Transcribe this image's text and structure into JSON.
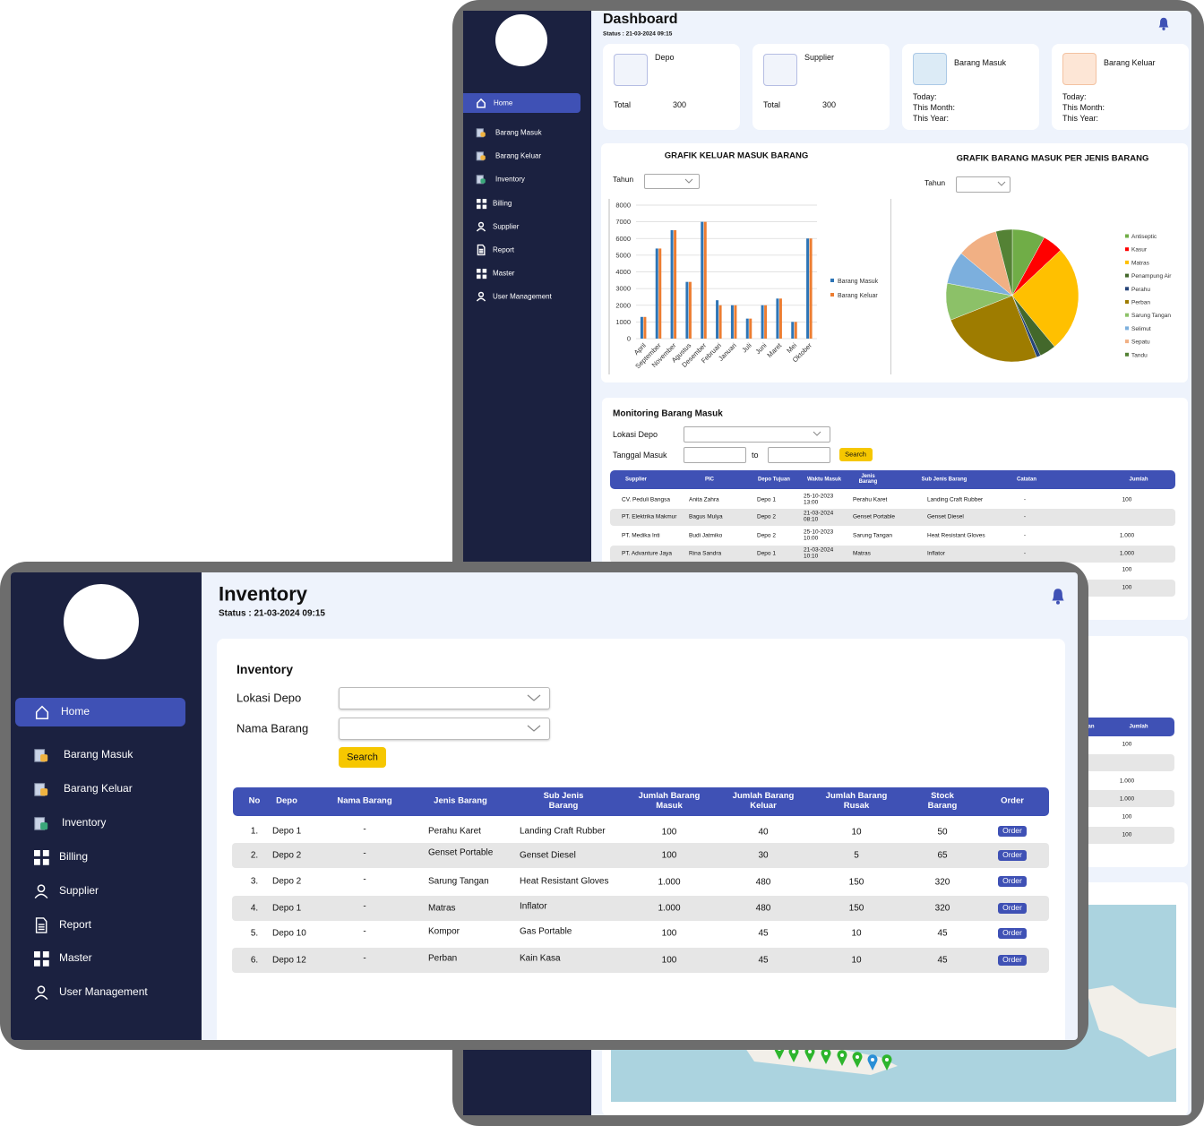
{
  "dashboard": {
    "sidebar": [
      "Home",
      "Barang Masuk",
      "Barang Keluar",
      "Inventory",
      "Billing",
      "Supplier",
      "Report",
      "Master",
      "User Management"
    ],
    "title": "Dashboard",
    "status": "Status : 21-03-2024  09:15",
    "cards": [
      {
        "title": "Depo",
        "label": "Total",
        "value": "300"
      },
      {
        "title": "Supplier",
        "label": "Total",
        "value": "300"
      },
      {
        "title": "Barang Masuk",
        "lines": [
          "Today:",
          "This Month:",
          "This Year:"
        ]
      },
      {
        "title": "Barang Keluar",
        "lines": [
          "Today:",
          "This Month:",
          "This Year:"
        ]
      }
    ],
    "bar_chart": {
      "type": "bar",
      "title": "GRAFIK  KELUAR MASUK BARANG",
      "filter_label": "Tahun",
      "categories": [
        "April",
        "September",
        "November",
        "Agustus",
        "Desember",
        "Februari",
        "Januari",
        "Juli",
        "Juni",
        "Maret",
        "Mei",
        "Oktober"
      ],
      "series": [
        {
          "name": "Barang Masuk",
          "color": "#2e75b6",
          "values": [
            1300,
            5400,
            6500,
            3400,
            7000,
            2300,
            2000,
            1200,
            2000,
            2400,
            1000,
            6000
          ]
        },
        {
          "name": "Barang Keluar",
          "color": "#ed7d31",
          "values": [
            1300,
            5400,
            6500,
            3400,
            7000,
            2000,
            2000,
            1200,
            2000,
            2400,
            1000,
            6000
          ]
        }
      ],
      "ylim": [
        0,
        8000
      ],
      "yticks": [
        0,
        1000,
        2000,
        3000,
        4000,
        5000,
        6000,
        7000,
        8000
      ],
      "grid": true
    },
    "pie_chart": {
      "type": "pie",
      "title": "GRAFIK BARANG MASUK PER JENIS BARANG",
      "filter_label": "Tahun",
      "categories": [
        "Antiseptic",
        "Kasur",
        "Matras",
        "Penampung Air",
        "Perahu",
        "Perban",
        "Sarung Tangan",
        "Selimut",
        "Sepatu",
        "Tandu"
      ],
      "values": [
        8,
        5,
        26,
        4,
        1,
        25,
        9,
        8,
        10,
        4
      ],
      "colors": [
        "#70ad47",
        "#ff0000",
        "#ffc000",
        "#43682b",
        "#264478",
        "#9e7c00",
        "#8cc168",
        "#7cafdd",
        "#f1b084",
        "#548235"
      ]
    },
    "monitoring": {
      "title": "Monitoring Barang Masuk",
      "fields": [
        "Lokasi Depo",
        "Tanggal Masuk"
      ],
      "to": "to",
      "button": "Search",
      "columns": [
        "Supplier",
        "PIC",
        "Depo Tujuan",
        "Waktu Masuk",
        "Jenis Barang",
        "Sub Jenis Barang",
        "Catatan",
        "Jumlah"
      ],
      "rows": [
        [
          "CV. Peduli Bangsa",
          "Anita Zahra",
          "Depo 1",
          "25-10-2023 13:00",
          "Perahu Karet",
          "Landing Craft Rubber",
          "-",
          "100"
        ],
        [
          "PT. Elektrika Makmur",
          "Bagus Mulya",
          "Depo 2",
          "21-03-2024 08:10",
          "Genset Portable",
          "Genset Diesel",
          "-",
          null
        ],
        [
          "PT. Medika Inti",
          "Budi Jatmiko",
          "Depo 2",
          "25-10-2023 10:00",
          "Sarung Tangan",
          "Heat Resistant Gloves",
          "-",
          "1.000"
        ],
        [
          "PT. Advanture Jaya",
          "Rina Sandra",
          "Depo 1",
          "21-03-2024 10:10",
          "Matras",
          "Inflator",
          "-",
          "1.000"
        ]
      ],
      "more_jumlah": [
        "100",
        "100"
      ]
    },
    "fragment": {
      "columns": [
        "an",
        "Jumlah"
      ],
      "values": [
        "100",
        "1.000",
        "1.000",
        "100",
        "100"
      ]
    }
  },
  "inventory": {
    "sidebar": [
      "Home",
      "Barang Masuk",
      "Barang Keluar",
      "Inventory",
      "Billing",
      "Supplier",
      "Report",
      "Master",
      "User Management"
    ],
    "title": "Inventory",
    "status": "Status : 21-03-2024  09:15",
    "panel_title": "Inventory",
    "fields": [
      "Lokasi Depo",
      "Nama Barang"
    ],
    "button": "Search",
    "columns": [
      "No",
      "Depo",
      "Nama Barang",
      "Jenis Barang",
      "Sub Jenis Barang",
      "Jumlah Barang Masuk",
      "Jumlah Barang Keluar",
      "Jumlah Barang Rusak",
      "Stock Barang",
      "Order"
    ],
    "rows": [
      [
        "1.",
        "Depo 1",
        "-",
        "Perahu Karet",
        "Landing Craft Rubber",
        "100",
        "40",
        "10",
        "50",
        "Order"
      ],
      [
        "2.",
        "Depo 2",
        "-",
        "Genset Portable",
        "Genset Diesel",
        "100",
        "30",
        "5",
        "65",
        "Order"
      ],
      [
        "3.",
        "Depo 2",
        "-",
        "Sarung Tangan",
        "Heat Resistant Gloves",
        "1.000",
        "480",
        "150",
        "320",
        "Order"
      ],
      [
        "4.",
        "Depo 1",
        "-",
        "Matras",
        "Inflator",
        "1.000",
        "480",
        "150",
        "320",
        "Order"
      ],
      [
        "5.",
        "Depo 10",
        "-",
        "Kompor",
        "Gas Portable",
        "100",
        "45",
        "10",
        "45",
        "Order"
      ],
      [
        "6.",
        "Depo 12",
        "-",
        "Perban",
        "Kain Kasa",
        "100",
        "45",
        "10",
        "45",
        "Order"
      ]
    ]
  }
}
